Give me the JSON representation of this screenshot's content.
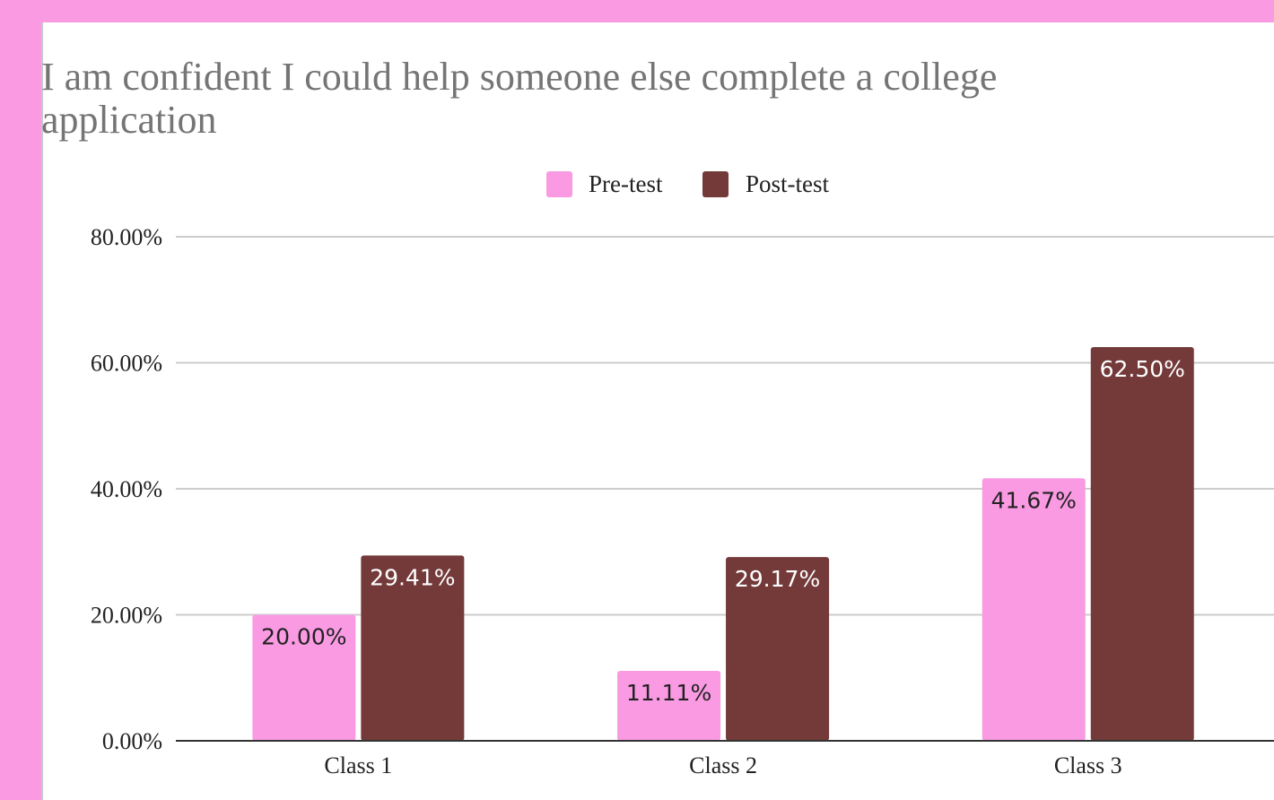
{
  "chart_data": {
    "type": "bar",
    "title": "I am confident I could help someone else complete a college application",
    "categories": [
      "Class 1",
      "Class 2",
      "Class 3"
    ],
    "series": [
      {
        "name": "Pre-test",
        "color": "#f99ae3",
        "label_color": "#222222",
        "values": [
          20.0,
          11.11,
          41.67
        ],
        "labels": [
          "20.00%",
          "11.11%",
          "41.67%"
        ]
      },
      {
        "name": "Post-test",
        "color": "#743a3a",
        "label_color": "#ffffff",
        "values": [
          29.41,
          29.17,
          62.5
        ],
        "labels": [
          "29.41%",
          "29.17%",
          "62.50%"
        ]
      }
    ],
    "ylim": [
      0,
      80
    ],
    "yticks": [
      0,
      20,
      40,
      60,
      80
    ],
    "ytick_labels": [
      "0.00%",
      "20.00%",
      "40.00%",
      "60.00%",
      "80.00%"
    ],
    "grid": true,
    "legend_position": "top-center"
  }
}
